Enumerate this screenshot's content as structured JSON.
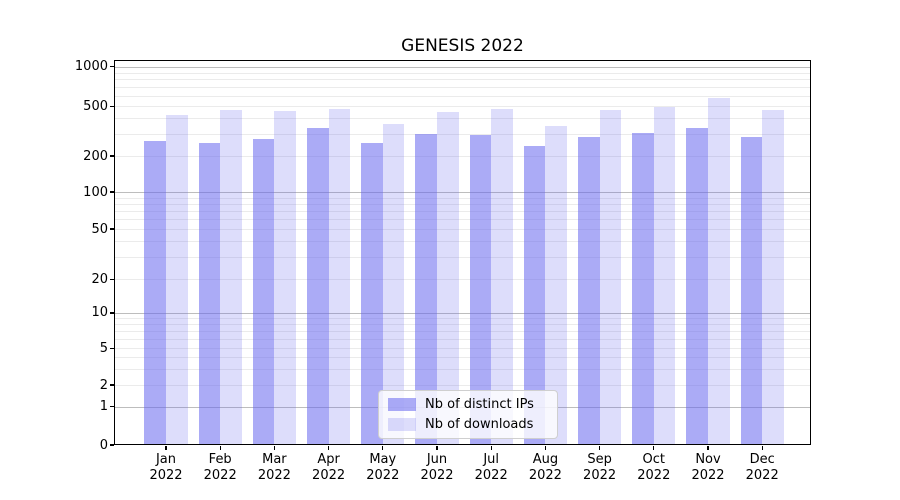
{
  "chart_data": {
    "type": "bar",
    "title": "GENESIS 2022",
    "categories": [
      "Jan 2022",
      "Feb 2022",
      "Mar 2022",
      "Apr 2022",
      "May 2022",
      "Jun 2022",
      "Jul 2022",
      "Aug 2022",
      "Sep 2022",
      "Oct 2022",
      "Nov 2022",
      "Dec 2022"
    ],
    "series": [
      {
        "name": "Nb of distinct IPs",
        "color": "rgba(102,102,238,0.55)",
        "values": [
          262,
          253,
          272,
          335,
          252,
          302,
          295,
          242,
          285,
          307,
          338,
          285
        ]
      },
      {
        "name": "Nb of downloads",
        "color": "rgba(102,102,238,0.22)",
        "values": [
          426,
          465,
          459,
          473,
          362,
          453,
          473,
          345,
          470,
          497,
          575,
          470
        ]
      }
    ],
    "xlabel": "",
    "ylabel": "",
    "yscale": "symlog",
    "ylim": [
      0,
      1000
    ],
    "yticks": [
      0,
      1,
      2,
      5,
      10,
      20,
      50,
      100,
      200,
      500,
      1000
    ],
    "grid": "both",
    "legend_position": "lower center"
  },
  "colors": {
    "grid_major": "#bdbdbd",
    "grid_minor": "#ebebeb",
    "spine": "#000000",
    "legend_border": "#cfcfcf"
  }
}
